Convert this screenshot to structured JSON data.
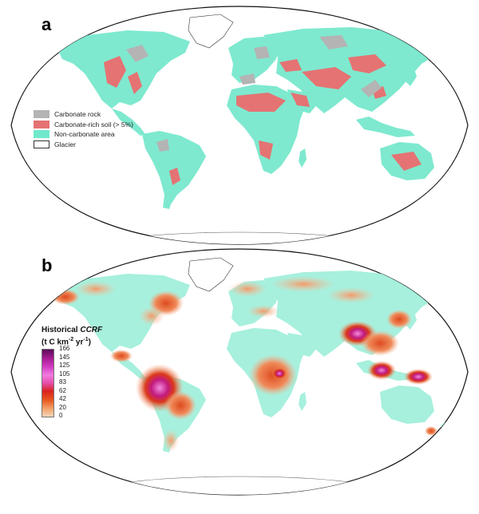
{
  "panels": {
    "a": {
      "label": "a",
      "legend": [
        {
          "label": "Carbonate rock",
          "color": "#b4b4b4"
        },
        {
          "label": "Carbonate-rich soil (> 5%)",
          "color": "#e57373"
        },
        {
          "label": "Non-carbonate area",
          "color": "#6fe8cc"
        },
        {
          "label": "Glacier",
          "color": "#ffffff"
        }
      ]
    },
    "b": {
      "label": "b",
      "legend_title_line1_prefix": "Historical ",
      "legend_title_line1_italic": "CCRF",
      "legend_title_line2_a": "(t C km",
      "legend_title_line2_sup1": "-2",
      "legend_title_line2_b": " yr",
      "legend_title_line2_sup2": "-1",
      "legend_title_line2_c": ")",
      "colorbar_ticks": [
        "166",
        "145",
        "125",
        "105",
        "83",
        "62",
        "42",
        "20",
        "0"
      ]
    }
  },
  "colors": {
    "ocean": "#ffffff",
    "land_base": "#88edd6",
    "carbonate_rock": "#b4b4b4",
    "carbonate_soil": "#e57373",
    "ccrf_low": "#f4a06e",
    "ccrf_mid": "#e0431c",
    "ccrf_high": "#d4148c",
    "ccrf_peak": "#f38bde"
  }
}
